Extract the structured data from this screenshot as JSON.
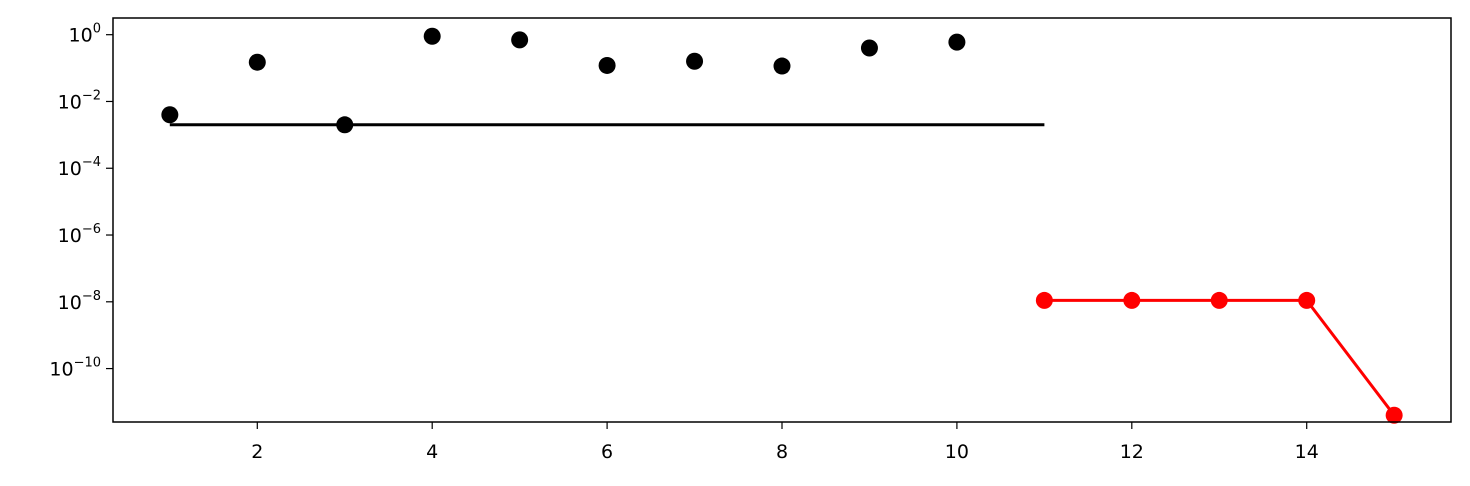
{
  "chart_data": {
    "type": "scatter",
    "title": "",
    "xlabel": "",
    "ylabel": "",
    "yscale": "log",
    "xlim": [
      0.35,
      15.65
    ],
    "ylim_log10": [
      -11.6,
      0.5
    ],
    "grid": false,
    "x_ticks": [
      {
        "value": 2,
        "label": "2"
      },
      {
        "value": 4,
        "label": "4"
      },
      {
        "value": 6,
        "label": "6"
      },
      {
        "value": 8,
        "label": "8"
      },
      {
        "value": 10,
        "label": "10"
      },
      {
        "value": 12,
        "label": "12"
      },
      {
        "value": 14,
        "label": "14"
      }
    ],
    "y_ticks": [
      {
        "exp": 0,
        "base": "10",
        "sup": "0"
      },
      {
        "exp": -2,
        "base": "10",
        "sup": "−2"
      },
      {
        "exp": -4,
        "base": "10",
        "sup": "−4"
      },
      {
        "exp": -6,
        "base": "10",
        "sup": "−6"
      },
      {
        "exp": -8,
        "base": "10",
        "sup": "−8"
      },
      {
        "exp": -10,
        "base": "10",
        "sup": "−10"
      }
    ],
    "series": [
      {
        "style": "markers",
        "color": "#000000",
        "x": [
          1,
          2,
          3,
          4,
          5,
          6,
          7,
          8,
          9,
          10
        ],
        "y": [
          0.004,
          0.15,
          0.002,
          0.9,
          0.7,
          0.12,
          0.16,
          0.115,
          0.4,
          0.6
        ]
      },
      {
        "style": "line",
        "color": "#000000",
        "x": [
          1,
          11
        ],
        "y": [
          0.002,
          0.002
        ]
      },
      {
        "style": "line-markers",
        "color": "#ff0000",
        "x": [
          11,
          12,
          13,
          14,
          15
        ],
        "y": [
          1.1e-08,
          1.1e-08,
          1.1e-08,
          1.1e-08,
          4e-12
        ]
      }
    ]
  }
}
